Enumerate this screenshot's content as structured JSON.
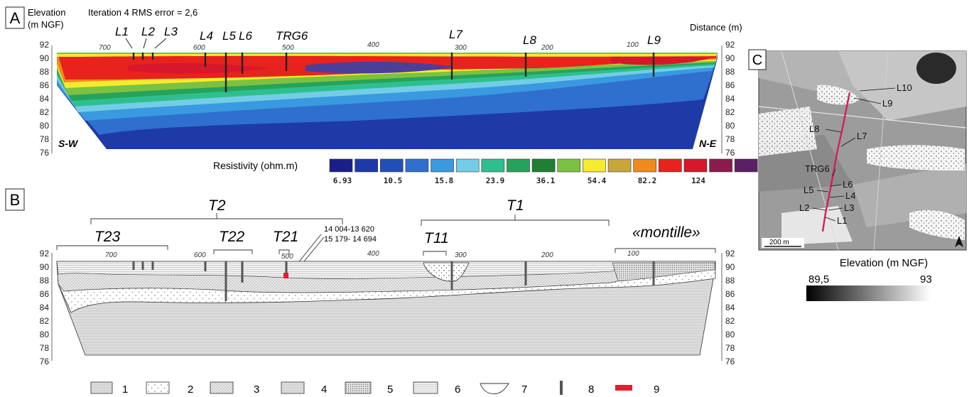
{
  "panel_a": {
    "letter": "A",
    "elevation_label_1": "Elevation",
    "elevation_label_2": "(m NGF)",
    "iteration_text": "Iteration 4 RMS error = 2,6",
    "distance_label": "Distance (m)",
    "left_end": "S-W",
    "right_end": "N-E",
    "elevation_ticks": [
      "92",
      "90",
      "88",
      "86",
      "84",
      "82",
      "80",
      "78",
      "76"
    ],
    "distance_ticks": [
      "700",
      "600",
      "500",
      "400",
      "300",
      "200",
      "100"
    ],
    "marker_labels": [
      "L1",
      "L2",
      "L3",
      "L4",
      "L5",
      "L6",
      "TRG6",
      "L7",
      "L8",
      "L9"
    ],
    "resistivity_label": "Resistivity (ohm.m)",
    "scale_values": [
      "6.93",
      "10.5",
      "15.8",
      "23.9",
      "36.1",
      "54.4",
      "82.2",
      "124"
    ],
    "scale_colors": [
      "#1b1f8a",
      "#1d3aa6",
      "#2350b8",
      "#2f6fce",
      "#3a9ae0",
      "#74cde6",
      "#2fbf8f",
      "#26a35a",
      "#1f7f33",
      "#7cc142",
      "#f4ec2e",
      "#c8a63a",
      "#f08a1c",
      "#e8231d",
      "#d6182a",
      "#8a1b4c",
      "#5b1f66"
    ]
  },
  "panel_b": {
    "letter": "B",
    "terrace_labels": [
      "T2",
      "T1",
      "T23",
      "T22",
      "T21",
      "T11",
      "«montille»"
    ],
    "dating_1": "14 004-13 620",
    "dating_2": "15 179- 14 694",
    "elevation_ticks": [
      "92",
      "90",
      "88",
      "86",
      "84",
      "82",
      "80",
      "78",
      "76"
    ],
    "distance_ticks": [
      "700",
      "600",
      "500",
      "400",
      "300",
      "200",
      "100"
    ],
    "legend": [
      "1",
      "2",
      "3",
      "4",
      "5",
      "6",
      "7",
      "8",
      "9"
    ]
  },
  "panel_c": {
    "letter": "C",
    "point_labels": [
      "L10",
      "L9",
      "L8",
      "L7",
      "TRG6",
      "L6",
      "L5",
      "L4",
      "L3",
      "L2",
      "L1"
    ],
    "scale_text": "200 m",
    "elevation_title": "Elevation (m NGF)",
    "min_value": "89,5",
    "max_value": "93"
  }
}
